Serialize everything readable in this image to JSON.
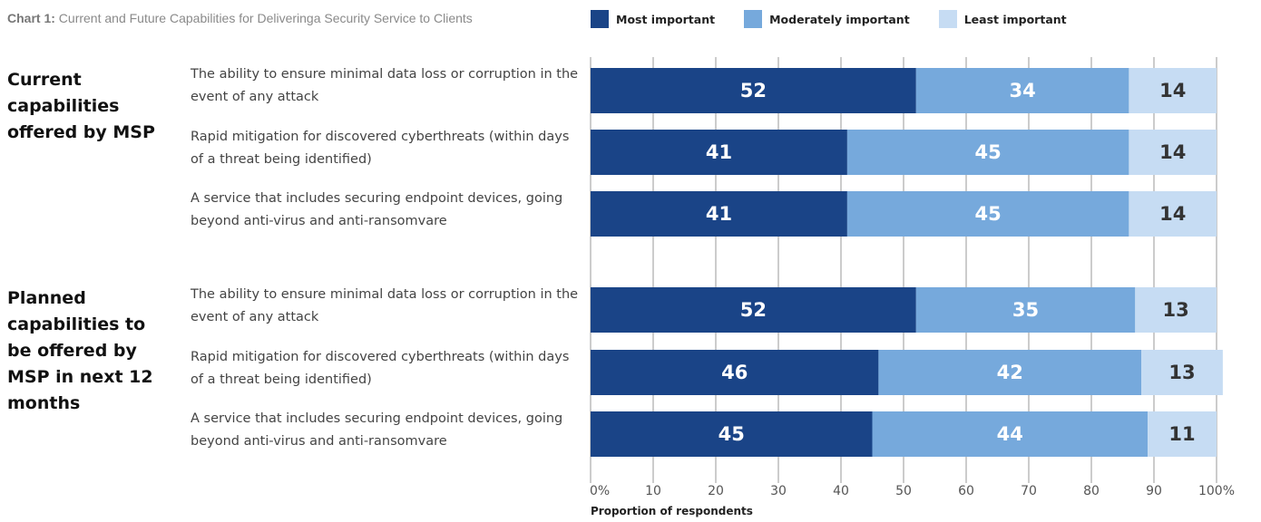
{
  "title": {
    "prefix": "Chart 1:",
    "text": "Current and Future Capabilities for Deliveringa Security Service to Clients"
  },
  "legend": [
    {
      "label": "Most important",
      "color": "#1a4487"
    },
    {
      "label": "Moderately important",
      "color": "#76a9dc"
    },
    {
      "label": "Least important",
      "color": "#c6dcf3"
    }
  ],
  "groups": [
    {
      "label": "Current capabilities offered by MSP"
    },
    {
      "label": "Planned capabilities to be offered by MSP in next 12 months"
    }
  ],
  "rows": [
    "The ability to ensure minimal data loss or corruption in the event of any attack",
    "Rapid mitigation for discovered cyberthreats (within days of a threat being identified)",
    "A service that includes securing endpoint devices, going beyond anti-virus and anti-ransomvare",
    "The ability to ensure minimal data loss or corruption in the event of any attack",
    "Rapid mitigation for discovered cyberthreats (within days of a threat being identified)",
    "A service that includes securing endpoint devices, going beyond anti-virus and anti-ransomvare"
  ],
  "chart_data": {
    "type": "bar",
    "orientation": "horizontal",
    "stacked": true,
    "categories": [
      "The ability to ensure minimal data loss or corruption in the event of any attack",
      "Rapid mitigation for discovered cyberthreats (within days of a threat being identified)",
      "A service that includes securing endpoint devices, going beyond anti-virus and anti-ransomvare",
      "The ability to ensure minimal data loss or corruption in the event of any attack",
      "Rapid mitigation for discovered cyberthreats (within days of a threat being identified)",
      "A service that includes securing endpoint devices, going beyond anti-virus and anti-ransomvare"
    ],
    "category_groups": [
      {
        "label": "Current capabilities offered by MSP",
        "rows": [
          0,
          1,
          2
        ]
      },
      {
        "label": "Planned capabilities to be offered by MSP in next 12 months",
        "rows": [
          3,
          4,
          5
        ]
      }
    ],
    "series": [
      {
        "name": "Most important",
        "color": "#1a4487",
        "label_color": "#ffffff",
        "values": [
          52,
          41,
          41,
          52,
          46,
          45
        ]
      },
      {
        "name": "Moderately important",
        "color": "#76a9dc",
        "label_color": "#ffffff",
        "values": [
          34,
          45,
          45,
          35,
          42,
          44
        ]
      },
      {
        "name": "Least important",
        "color": "#c6dcf3",
        "label_color": "#333333",
        "values": [
          14,
          14,
          14,
          13,
          13,
          11
        ]
      }
    ],
    "xlabel": "Proportion of respondents",
    "xlim": [
      0,
      100
    ],
    "xticks": [
      0,
      10,
      20,
      30,
      40,
      50,
      60,
      70,
      80,
      90,
      100
    ],
    "xtick_labels": [
      "0%",
      "10",
      "20",
      "30",
      "40",
      "50",
      "60",
      "70",
      "80",
      "90",
      "100%"
    ],
    "grid": true,
    "legend_position": "top"
  }
}
